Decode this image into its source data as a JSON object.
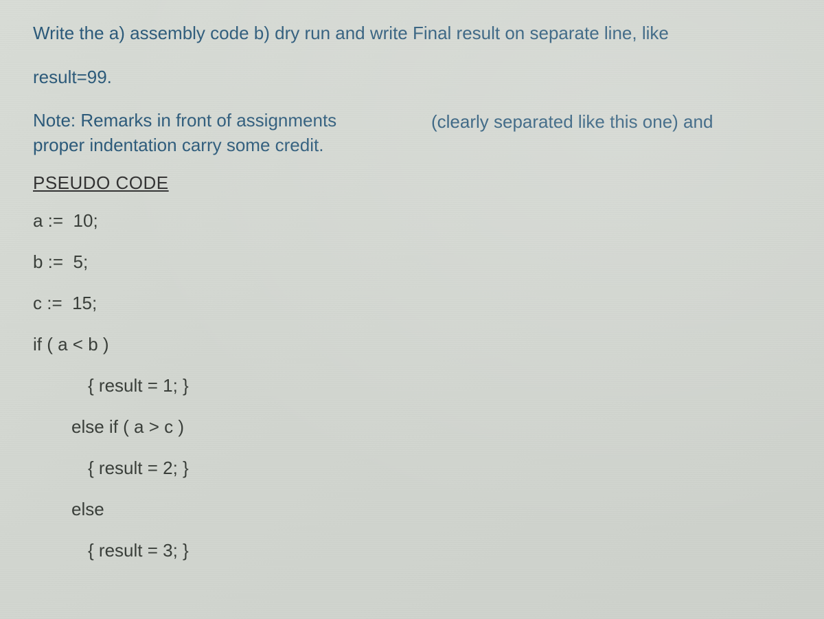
{
  "prompt": {
    "line1": "Write the a) assembly code b) dry run and write Final result on separate line, like",
    "line2": "result=99."
  },
  "note": {
    "left_line1": "Note: Remarks in front of assignments",
    "left_line2": "proper indentation carry some credit.",
    "right": "(clearly separated like this one) and"
  },
  "heading": "PSEUDO CODE",
  "code": {
    "l1": "a :=  10;",
    "l2": "b :=  5;",
    "l3": "c :=  15;",
    "l4": "if ( a < b )",
    "l5": "{ result = 1; }",
    "l6": "else if ( a > c )",
    "l7": "{ result = 2; }",
    "l8": "else",
    "l9": "{ result = 3; }"
  },
  "colors": {
    "blue_text": "#2c5a7a",
    "body_text": "#3a3f3a",
    "background": "#d5d9d3"
  }
}
